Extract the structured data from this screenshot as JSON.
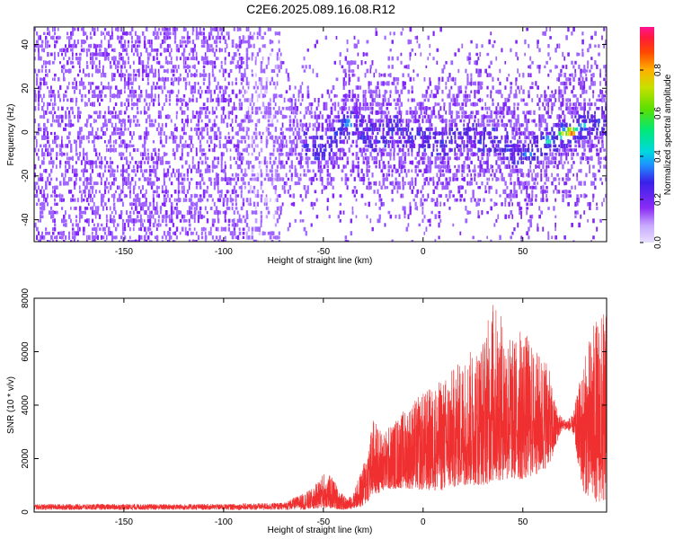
{
  "title": "C2E6.2025.089.16.08.R12",
  "colors": {
    "snr_trace": "#f03030",
    "colormap": [
      "#e8e0ff",
      "#c8a8ff",
      "#9b5cff",
      "#7a1cf5",
      "#4b1fe0",
      "#2a3cf0",
      "#1e90ff",
      "#00d8e0",
      "#00e878",
      "#5be000",
      "#c8e000",
      "#ffb000",
      "#ff4a00",
      "#ff1a3a",
      "#ff1493"
    ]
  },
  "chart_data": [
    {
      "type": "heatmap",
      "xlabel": "Height of straight line (km)",
      "ylabel": "Frequency (Hz)",
      "xlim": [
        -195,
        92
      ],
      "ylim": [
        -50,
        48
      ],
      "xticks": [
        -150,
        -100,
        -50,
        0,
        50
      ],
      "yticks": [
        -40,
        -20,
        0,
        20,
        40
      ],
      "colorbar": {
        "label": "Normalized spectral amplitude",
        "range": [
          0,
          1
        ],
        "ticks": [
          "0.0",
          "0.2",
          "0.4",
          "0.6",
          "0.8"
        ]
      },
      "ridge": {
        "x": [
          -80,
          -70,
          -60,
          -50,
          -45,
          -40,
          -35,
          -30,
          -25,
          -20,
          -15,
          -10,
          -5,
          0,
          5,
          10,
          15,
          20,
          25,
          30,
          35,
          40,
          45,
          50,
          55,
          60,
          65,
          70,
          75,
          80,
          85,
          90
        ],
        "y": [
          0,
          -2,
          -5,
          -8,
          -3,
          2,
          4,
          1,
          -3,
          -1,
          2,
          -2,
          -4,
          -3,
          -5,
          -6,
          -3,
          -1,
          -2,
          -4,
          -3,
          -5,
          -9,
          -12,
          -8,
          -5,
          -3,
          -1,
          1,
          3,
          4,
          5
        ]
      },
      "hotspots": [
        {
          "x": -38,
          "y": 4,
          "amp": 0.55
        },
        {
          "x": -45,
          "y": -1,
          "amp": 0.4
        },
        {
          "x": -20,
          "y": -4,
          "amp": 0.35
        },
        {
          "x": 10,
          "y": -5,
          "amp": 0.4
        },
        {
          "x": 30,
          "y": 1,
          "amp": 0.3
        },
        {
          "x": 52,
          "y": -10,
          "amp": 0.5
        },
        {
          "x": 62,
          "y": -4,
          "amp": 0.6
        },
        {
          "x": 70,
          "y": -1,
          "amp": 0.8
        },
        {
          "x": 74,
          "y": 0,
          "amp": 0.95
        },
        {
          "x": 80,
          "y": 3,
          "amp": 0.55
        },
        {
          "x": 88,
          "y": 4,
          "amp": 0.45
        }
      ]
    },
    {
      "type": "line",
      "xlabel": "Height of straight line (km)",
      "ylabel": "SNR (10 * v/v)",
      "xlim": [
        -195,
        92
      ],
      "ylim": [
        0,
        8000
      ],
      "xticks": [
        -150,
        -100,
        -50,
        0,
        50
      ],
      "yticks": [
        0,
        2000,
        4000,
        6000,
        8000
      ],
      "envelope": {
        "x": [
          -195,
          -150,
          -100,
          -70,
          -60,
          -55,
          -50,
          -45,
          -42,
          -38,
          -35,
          -30,
          -25,
          -20,
          -10,
          0,
          10,
          20,
          30,
          35,
          40,
          45,
          50,
          55,
          60,
          62,
          65,
          68,
          70,
          72,
          75,
          80,
          85,
          88,
          92
        ],
        "y": [
          300,
          300,
          300,
          350,
          700,
          900,
          1500,
          1300,
          800,
          500,
          700,
          1800,
          3500,
          3000,
          3800,
          4500,
          5000,
          5800,
          6500,
          8000,
          7200,
          6500,
          7000,
          6200,
          5800,
          6000,
          4500,
          3800,
          3500,
          3500,
          3600,
          5500,
          7000,
          7400,
          7500
        ]
      },
      "floor": {
        "x": [
          -195,
          -60,
          -50,
          -40,
          -30,
          -25,
          -20,
          -10,
          0,
          10,
          20,
          30,
          40,
          50,
          60,
          65,
          68,
          70,
          75,
          80,
          85,
          92
        ],
        "y": [
          80,
          80,
          150,
          80,
          200,
          600,
          800,
          900,
          800,
          800,
          1000,
          1000,
          1200,
          1200,
          1500,
          2000,
          2800,
          3100,
          3000,
          800,
          400,
          300
        ]
      }
    }
  ]
}
